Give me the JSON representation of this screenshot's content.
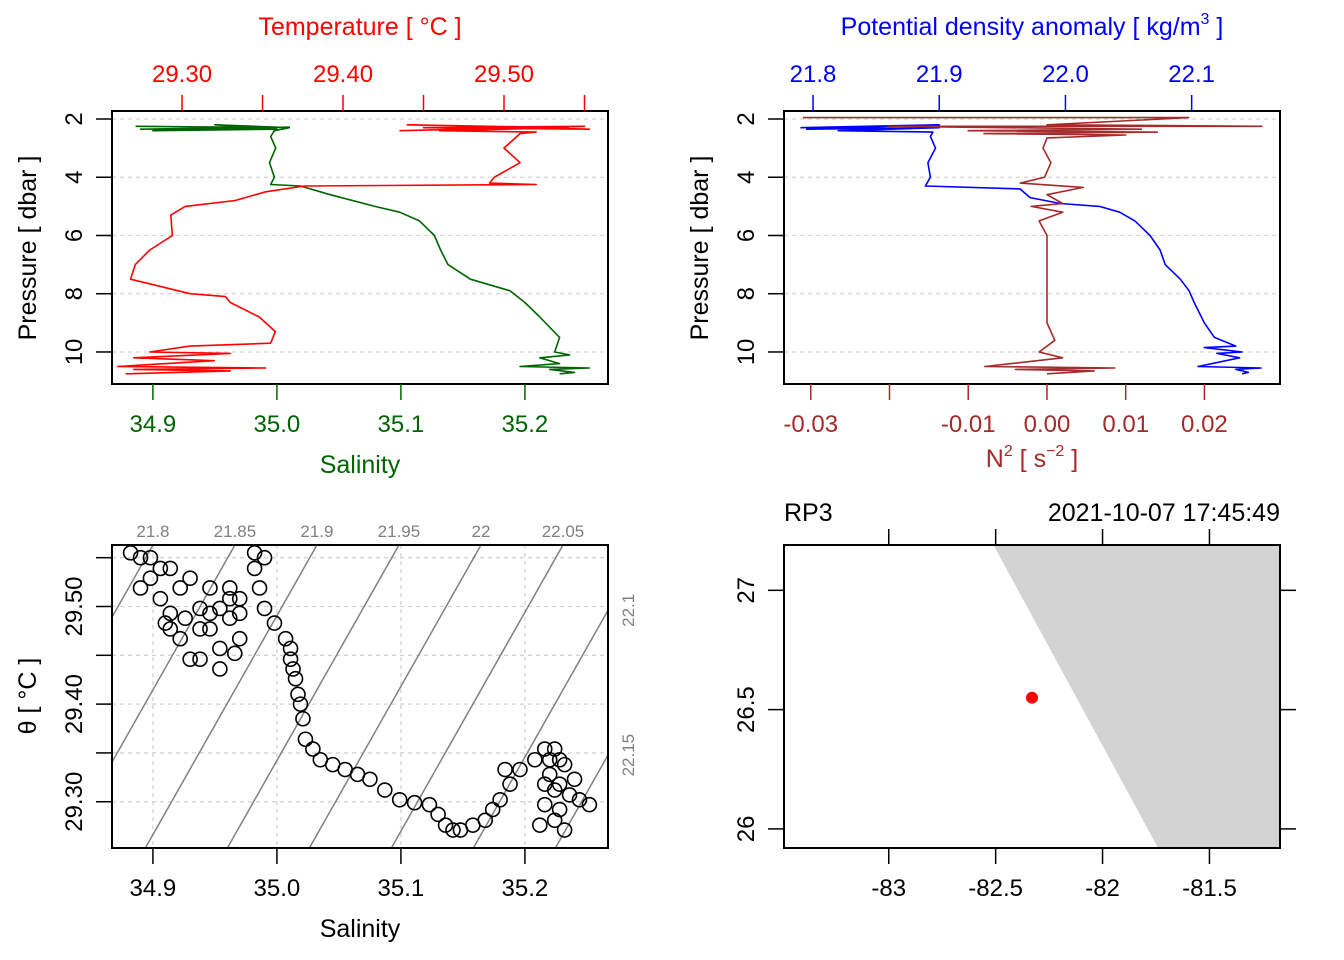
{
  "colors": {
    "salinity": "#006400",
    "temperature": "#ff0000",
    "density": "#0000ff",
    "n2": "#a52a2a",
    "isopycnal": "#808080",
    "grid": "#d3d3d3",
    "land": "#d3d3d3",
    "station": "#ff0000"
  },
  "chart_data": [
    {
      "type": "line",
      "panel": "salinity-temperature-profile",
      "title": "",
      "ylabel": "Pressure [ dbar ]",
      "ylim": [
        11.1,
        1.725
      ],
      "yticks": [
        2,
        4,
        6,
        8,
        10
      ],
      "grid": "horizontal dashed at pressure ticks",
      "bottom_axis": {
        "label": "Salinity",
        "xlim": [
          34.867,
          35.267
        ],
        "ticks": [
          34.9,
          35.0,
          35.1,
          35.2
        ],
        "tick_labels": [
          "34.9",
          "35.0",
          "35.1",
          "35.2"
        ]
      },
      "top_axis": {
        "label": "Temperature [ °C ]",
        "xlim": [
          29.2565,
          29.5646
        ],
        "ticks": [
          29.3,
          29.35,
          29.4,
          29.45,
          29.5,
          29.55
        ],
        "tick_labels": [
          "29.30",
          "",
          "29.40",
          "",
          "29.50",
          ""
        ]
      },
      "series": [
        {
          "axis": "bottom",
          "color_key": "salinity",
          "points": [
            [
              34.886,
              2.25
            ],
            [
              35.0,
              2.3
            ],
            [
              34.89,
              2.35
            ],
            [
              35.01,
              2.28
            ],
            [
              34.9,
              2.4
            ],
            [
              35.0,
              2.35
            ],
            [
              34.95,
              2.2
            ],
            [
              35.01,
              2.3
            ],
            [
              34.998,
              2.4
            ],
            [
              34.995,
              2.6
            ],
            [
              34.999,
              3.0
            ],
            [
              34.994,
              3.5
            ],
            [
              34.998,
              4.0
            ],
            [
              34.995,
              4.25
            ],
            [
              35.019,
              4.3
            ],
            [
              35.043,
              4.6
            ],
            [
              35.079,
              5.0
            ],
            [
              35.099,
              5.2
            ],
            [
              35.115,
              5.5
            ],
            [
              35.127,
              6.0
            ],
            [
              35.132,
              6.5
            ],
            [
              35.138,
              7.0
            ],
            [
              35.156,
              7.5
            ],
            [
              35.188,
              7.9
            ],
            [
              35.2,
              8.3
            ],
            [
              35.212,
              8.8
            ],
            [
              35.228,
              9.5
            ],
            [
              35.224,
              10.0
            ],
            [
              35.236,
              10.1
            ],
            [
              35.212,
              10.2
            ],
            [
              35.228,
              10.4
            ],
            [
              35.196,
              10.5
            ],
            [
              35.252,
              10.55
            ],
            [
              35.22,
              10.6
            ],
            [
              35.24,
              10.7
            ],
            [
              35.228,
              10.75
            ]
          ]
        },
        {
          "axis": "top",
          "color_key": "temperature",
          "points": [
            [
              29.435,
              2.4
            ],
            [
              29.55,
              2.25
            ],
            [
              29.45,
              2.3
            ],
            [
              29.553,
              2.35
            ],
            [
              29.44,
              2.2
            ],
            [
              29.54,
              2.3
            ],
            [
              29.46,
              2.4
            ],
            [
              29.52,
              2.45
            ],
            [
              29.51,
              2.5
            ],
            [
              29.5,
              3.0
            ],
            [
              29.51,
              3.5
            ],
            [
              29.494,
              4.0
            ],
            [
              29.491,
              4.2
            ],
            [
              29.52,
              4.25
            ],
            [
              29.376,
              4.3
            ],
            [
              29.352,
              4.5
            ],
            [
              29.333,
              4.8
            ],
            [
              29.302,
              5.0
            ],
            [
              29.293,
              5.3
            ],
            [
              29.294,
              6.0
            ],
            [
              29.28,
              6.5
            ],
            [
              29.271,
              7.0
            ],
            [
              29.268,
              7.5
            ],
            [
              29.305,
              8.0
            ],
            [
              29.327,
              8.1
            ],
            [
              29.33,
              8.3
            ],
            [
              29.348,
              8.8
            ],
            [
              29.358,
              9.3
            ],
            [
              29.355,
              9.7
            ],
            [
              29.305,
              9.8
            ],
            [
              29.28,
              10.0
            ],
            [
              29.33,
              10.05
            ],
            [
              29.27,
              10.2
            ],
            [
              29.32,
              10.3
            ],
            [
              29.26,
              10.5
            ],
            [
              29.352,
              10.55
            ],
            [
              29.27,
              10.6
            ],
            [
              29.33,
              10.65
            ],
            [
              29.265,
              10.75
            ]
          ]
        }
      ]
    },
    {
      "type": "line",
      "panel": "density-n2-profile",
      "title": "",
      "ylabel": "Pressure [ dbar ]",
      "ylim": [
        11.1,
        1.725
      ],
      "yticks": [
        2,
        4,
        6,
        8,
        10
      ],
      "grid": "horizontal dashed at pressure ticks",
      "top_axis": {
        "label_main": "Potential density anomaly [ kg/m",
        "label_sup": "3",
        "label_end": " ]",
        "xlim": [
          21.777,
          22.17
        ],
        "ticks": [
          21.8,
          21.9,
          22.0,
          22.1
        ],
        "tick_labels": [
          "21.8",
          "21.9",
          "22.0",
          "22.1"
        ]
      },
      "bottom_axis": {
        "label_n": "N",
        "label_sup1": "2",
        "label_mid": " [ s",
        "label_sup2": "−2",
        "label_end": " ]",
        "xlim": [
          -0.0334,
          0.0296
        ],
        "ticks": [
          -0.03,
          -0.02,
          -0.01,
          0.0,
          0.01,
          0.02
        ],
        "tick_labels": [
          "-0.03",
          "",
          "-0.01",
          "0.00",
          "0.01",
          "0.02"
        ]
      },
      "series": [
        {
          "axis": "top",
          "color_key": "density",
          "points": [
            [
              21.79,
              2.3
            ],
            [
              21.9,
              2.2
            ],
            [
              21.795,
              2.35
            ],
            [
              21.9,
              2.3
            ],
            [
              21.82,
              2.4
            ],
            [
              21.895,
              2.45
            ],
            [
              21.893,
              2.6
            ],
            [
              21.897,
              3.0
            ],
            [
              21.891,
              3.5
            ],
            [
              21.893,
              4.0
            ],
            [
              21.889,
              4.3
            ],
            [
              21.964,
              4.4
            ],
            [
              21.972,
              4.7
            ],
            [
              21.996,
              4.9
            ],
            [
              22.027,
              5.0
            ],
            [
              22.043,
              5.2
            ],
            [
              22.055,
              5.5
            ],
            [
              22.067,
              6.0
            ],
            [
              22.075,
              6.5
            ],
            [
              22.079,
              7.0
            ],
            [
              22.091,
              7.5
            ],
            [
              22.098,
              7.9
            ],
            [
              22.102,
              8.3
            ],
            [
              22.11,
              9.0
            ],
            [
              22.118,
              9.5
            ],
            [
              22.135,
              9.8
            ],
            [
              22.11,
              9.85
            ],
            [
              22.14,
              10.0
            ],
            [
              22.12,
              10.05
            ],
            [
              22.138,
              10.2
            ],
            [
              22.105,
              10.5
            ],
            [
              22.155,
              10.55
            ],
            [
              22.135,
              10.6
            ],
            [
              22.145,
              10.7
            ],
            [
              22.14,
              10.75
            ]
          ]
        },
        {
          "axis": "bottom",
          "color_key": "n2",
          "points": [
            [
              -0.031,
              1.95
            ],
            [
              0.018,
              1.95
            ],
            [
              0.0,
              2.2
            ],
            [
              0.0273,
              2.25
            ],
            [
              -0.02,
              2.25
            ],
            [
              0.012,
              2.35
            ],
            [
              -0.01,
              2.4
            ],
            [
              0.014,
              2.45
            ],
            [
              -0.008,
              2.5
            ],
            [
              0.01,
              2.55
            ],
            [
              0.0,
              2.65
            ],
            [
              -0.0005,
              3.0
            ],
            [
              0.0005,
              3.5
            ],
            [
              -0.0003,
              4.0
            ],
            [
              -0.0034,
              4.2
            ],
            [
              0.0046,
              4.35
            ],
            [
              0.0,
              4.6
            ],
            [
              0.002,
              4.9
            ],
            [
              -0.002,
              5.0
            ],
            [
              0.002,
              5.2
            ],
            [
              -0.001,
              5.5
            ],
            [
              0.0,
              6.0
            ],
            [
              0.0,
              7.0
            ],
            [
              0.0,
              8.0
            ],
            [
              0.0,
              9.0
            ],
            [
              0.001,
              9.6
            ],
            [
              -0.001,
              10.0
            ],
            [
              0.002,
              10.2
            ],
            [
              -0.0079,
              10.5
            ],
            [
              0.0086,
              10.55
            ],
            [
              -0.004,
              10.6
            ],
            [
              0.006,
              10.65
            ],
            [
              0.0,
              10.75
            ]
          ]
        }
      ]
    },
    {
      "type": "scatter",
      "panel": "ts-diagram",
      "title": "",
      "xlabel": "Salinity",
      "ylabel": "θ [ °C ]",
      "xlim": [
        34.867,
        35.267
      ],
      "ylim": [
        29.2526,
        29.563
      ],
      "xticks": [
        34.9,
        35.0,
        35.1,
        35.2
      ],
      "xtick_labels": [
        "34.9",
        "35.0",
        "35.1",
        "35.2"
      ],
      "yticks": [
        29.3,
        29.35,
        29.4,
        29.45,
        29.5,
        29.55
      ],
      "ytick_labels": [
        "29.30",
        "",
        "29.40",
        "",
        "29.50",
        ""
      ],
      "grid": "dashed at ticks",
      "isopycnal_levels": [
        21.7,
        21.75,
        21.8,
        21.85,
        21.9,
        21.95,
        22.0,
        22.05,
        22.1,
        22.15
      ],
      "isopycnal_labels": [
        "",
        "",
        "21.8",
        "21.85",
        "21.9",
        "21.95",
        "22",
        "22.05",
        "22.1",
        "22.15"
      ],
      "marker": "open-circle",
      "points": [
        [
          34.882,
          29.555
        ],
        [
          34.898,
          29.55
        ],
        [
          34.914,
          29.539
        ],
        [
          34.93,
          29.529
        ],
        [
          34.946,
          29.519
        ],
        [
          34.962,
          29.508
        ],
        [
          34.97,
          29.493
        ],
        [
          34.97,
          29.467
        ],
        [
          34.954,
          29.457
        ],
        [
          34.938,
          29.446
        ],
        [
          34.922,
          29.467
        ],
        [
          34.91,
          29.483
        ],
        [
          34.89,
          29.519
        ],
        [
          34.906,
          29.508
        ],
        [
          34.926,
          29.488
        ],
        [
          34.946,
          29.477
        ],
        [
          34.966,
          29.452
        ],
        [
          34.954,
          29.436
        ],
        [
          34.93,
          29.446
        ],
        [
          34.914,
          29.477
        ],
        [
          34.898,
          29.529
        ],
        [
          34.938,
          29.498
        ],
        [
          34.962,
          29.488
        ],
        [
          34.954,
          29.498
        ],
        [
          34.922,
          29.519
        ],
        [
          34.946,
          29.493
        ],
        [
          34.906,
          29.539
        ],
        [
          34.89,
          29.55
        ],
        [
          34.938,
          29.477
        ],
        [
          34.914,
          29.493
        ],
        [
          34.962,
          29.519
        ],
        [
          34.97,
          29.508
        ],
        [
          34.982,
          29.555
        ],
        [
          34.99,
          29.55
        ],
        [
          34.982,
          29.539
        ],
        [
          34.986,
          29.519
        ],
        [
          34.99,
          29.498
        ],
        [
          34.998,
          29.483
        ],
        [
          35.007,
          29.467
        ],
        [
          35.011,
          29.457
        ],
        [
          35.011,
          29.446
        ],
        [
          35.013,
          29.436
        ],
        [
          35.015,
          29.426
        ],
        [
          35.017,
          29.41
        ],
        [
          35.019,
          29.4
        ],
        [
          35.021,
          29.385
        ],
        [
          35.023,
          29.364
        ],
        [
          35.029,
          29.354
        ],
        [
          35.035,
          29.343
        ],
        [
          35.045,
          29.338
        ],
        [
          35.055,
          29.333
        ],
        [
          35.065,
          29.328
        ],
        [
          35.075,
          29.323
        ],
        [
          35.087,
          29.312
        ],
        [
          35.099,
          29.302
        ],
        [
          35.111,
          29.299
        ],
        [
          35.123,
          29.297
        ],
        [
          35.13,
          29.287
        ],
        [
          35.136,
          29.276
        ],
        [
          35.142,
          29.271
        ],
        [
          35.148,
          29.271
        ],
        [
          35.158,
          29.276
        ],
        [
          35.168,
          29.281
        ],
        [
          35.174,
          29.292
        ],
        [
          35.18,
          29.302
        ],
        [
          35.188,
          29.318
        ],
        [
          35.196,
          29.333
        ],
        [
          35.184,
          29.333
        ],
        [
          35.208,
          29.343
        ],
        [
          35.216,
          29.354
        ],
        [
          35.224,
          29.354
        ],
        [
          35.228,
          29.343
        ],
        [
          35.22,
          29.328
        ],
        [
          35.224,
          29.312
        ],
        [
          35.216,
          29.297
        ],
        [
          35.224,
          29.281
        ],
        [
          35.232,
          29.271
        ],
        [
          35.212,
          29.276
        ],
        [
          35.228,
          29.292
        ],
        [
          35.236,
          29.307
        ],
        [
          35.244,
          29.302
        ],
        [
          35.252,
          29.297
        ],
        [
          35.24,
          29.323
        ],
        [
          35.232,
          29.338
        ],
        [
          35.22,
          29.343
        ],
        [
          35.228,
          29.318
        ],
        [
          35.216,
          29.318
        ]
      ]
    },
    {
      "type": "map",
      "panel": "station-map",
      "station_label": "RP3",
      "datetime": "2021-10-07 17:45:49",
      "xlim": [
        -83.49,
        -81.17
      ],
      "ylim": [
        25.92,
        27.19
      ],
      "xticks": [
        -83,
        -82.5,
        -82,
        -81.5
      ],
      "xtick_labels": [
        "-83",
        "-82.5",
        "-82",
        "-81.5"
      ],
      "yticks": [
        26,
        26.5,
        27
      ],
      "ytick_labels": [
        "26",
        "26.5",
        "27"
      ],
      "station": {
        "lon": -82.33,
        "lat": 26.55
      },
      "land_polygon": [
        [
          -82.51,
          27.19
        ],
        [
          -81.17,
          27.19
        ],
        [
          -81.17,
          25.92
        ],
        [
          -81.74,
          25.92
        ]
      ]
    }
  ]
}
